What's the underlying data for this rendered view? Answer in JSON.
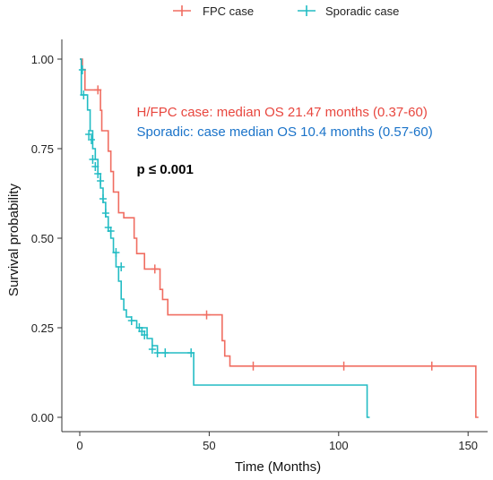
{
  "chart_data": {
    "type": "line",
    "step": true,
    "xlabel": "Time (Months)",
    "ylabel": "Survival probability",
    "xlim": [
      0,
      155
    ],
    "ylim": [
      0,
      1.0
    ],
    "x_ticks": [
      "0",
      "50",
      "100",
      "150"
    ],
    "y_ticks": [
      "0.00",
      "0.25",
      "0.50",
      "0.75",
      "1.00"
    ],
    "x_tick_values": [
      0,
      50,
      100,
      150
    ],
    "y_tick_values": [
      0,
      0.25,
      0.5,
      0.75,
      1.0
    ],
    "legend": {
      "placement": "top"
    },
    "grid": false,
    "annotations": [
      {
        "text": "H/FPC case: median OS 21.47 months (0.37-60)",
        "color": "#e8473f",
        "x": 22,
        "y": 0.84
      },
      {
        "text": "Sporadic: case median OS 10.4 months (0.57-60)",
        "color": "#1a73c9",
        "x": 22,
        "y": 0.785
      },
      {
        "text": "p ≤ 0.001",
        "color": "#000000",
        "x": 22,
        "y": 0.68
      }
    ],
    "series": [
      {
        "name": "FPC case",
        "color": "#f06d61",
        "steps": [
          [
            0,
            1.0
          ],
          [
            1,
            0.971
          ],
          [
            2,
            0.914
          ],
          [
            7.5,
            0.914
          ],
          [
            8,
            0.857
          ],
          [
            8.5,
            0.8
          ],
          [
            11,
            0.743
          ],
          [
            12,
            0.686
          ],
          [
            13,
            0.629
          ],
          [
            15,
            0.571
          ],
          [
            17,
            0.557
          ],
          [
            21,
            0.5
          ],
          [
            22,
            0.457
          ],
          [
            25,
            0.414
          ],
          [
            31,
            0.357
          ],
          [
            32,
            0.329
          ],
          [
            34,
            0.286
          ],
          [
            55,
            0.214
          ],
          [
            56,
            0.171
          ],
          [
            58,
            0.143
          ],
          [
            153,
            0.143
          ],
          [
            153,
            0.0
          ],
          [
            154,
            0.0
          ]
        ],
        "censored": [
          [
            7,
            0.914
          ],
          [
            29,
            0.414
          ],
          [
            49,
            0.286
          ],
          [
            67,
            0.143
          ],
          [
            102,
            0.143
          ],
          [
            136,
            0.143
          ]
        ]
      },
      {
        "name": "Sporadic case",
        "color": "#22bcc4",
        "steps": [
          [
            0,
            1.0
          ],
          [
            0.6,
            0.9
          ],
          [
            3,
            0.858
          ],
          [
            4,
            0.8
          ],
          [
            5,
            0.75
          ],
          [
            6,
            0.72
          ],
          [
            7,
            0.68
          ],
          [
            8,
            0.64
          ],
          [
            9,
            0.6
          ],
          [
            10,
            0.56
          ],
          [
            11,
            0.52
          ],
          [
            12,
            0.5
          ],
          [
            13,
            0.46
          ],
          [
            14,
            0.42
          ],
          [
            15,
            0.38
          ],
          [
            16,
            0.33
          ],
          [
            17,
            0.3
          ],
          [
            18,
            0.28
          ],
          [
            20,
            0.27
          ],
          [
            22,
            0.25
          ],
          [
            26,
            0.22
          ],
          [
            28,
            0.2
          ],
          [
            30,
            0.18
          ],
          [
            43.5,
            0.18
          ],
          [
            44,
            0.09
          ],
          [
            111,
            0.09
          ],
          [
            111,
            0.0
          ],
          [
            112,
            0.0
          ]
        ],
        "censored": [
          [
            1,
            0.97
          ],
          [
            1.5,
            0.9
          ],
          [
            3.5,
            0.79
          ],
          [
            4.5,
            0.775
          ],
          [
            5,
            0.72
          ],
          [
            6,
            0.7
          ],
          [
            7,
            0.68
          ],
          [
            8,
            0.66
          ],
          [
            9,
            0.61
          ],
          [
            10,
            0.57
          ],
          [
            11,
            0.53
          ],
          [
            12,
            0.52
          ],
          [
            14,
            0.46
          ],
          [
            16,
            0.42
          ],
          [
            20,
            0.27
          ],
          [
            23,
            0.25
          ],
          [
            24,
            0.24
          ],
          [
            25,
            0.23
          ],
          [
            28,
            0.19
          ],
          [
            30,
            0.18
          ],
          [
            33,
            0.18
          ],
          [
            43,
            0.18
          ]
        ]
      }
    ]
  }
}
